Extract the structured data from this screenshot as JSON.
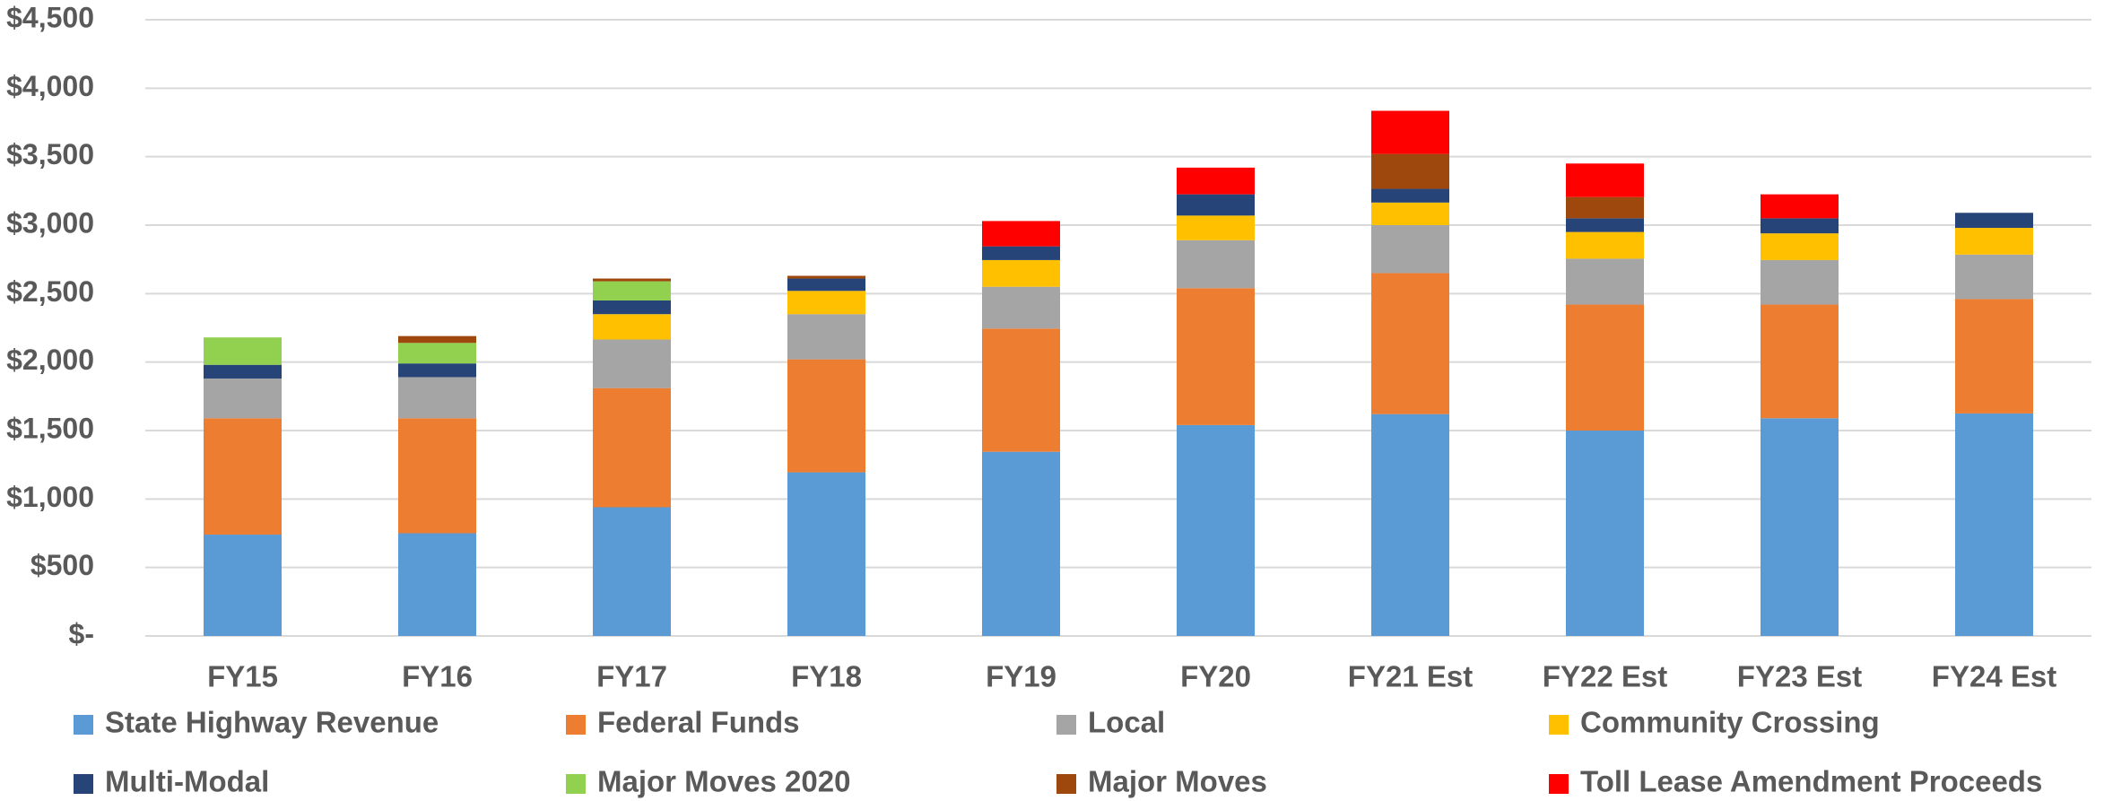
{
  "chart_data": {
    "type": "stacked_bar",
    "categories": [
      "FY15",
      "FY16",
      "FY17",
      "FY18",
      "FY19",
      "FY20",
      "FY21 Est",
      "FY22 Est",
      "FY23 Est",
      "FY24 Est"
    ],
    "series": [
      {
        "name": "State Highway Revenue",
        "color": "#5b9bd5",
        "values": [
          740,
          750,
          940,
          1195,
          1345,
          1540,
          1620,
          1500,
          1590,
          1625
        ]
      },
      {
        "name": "Federal Funds",
        "color": "#ed7d31",
        "values": [
          850,
          840,
          870,
          825,
          900,
          1000,
          1030,
          920,
          830,
          835
        ]
      },
      {
        "name": "Local",
        "color": "#a5a5a5",
        "values": [
          290,
          300,
          355,
          330,
          305,
          350,
          350,
          335,
          325,
          325
        ]
      },
      {
        "name": "Community Crossing",
        "color": "#ffc000",
        "values": [
          0,
          0,
          185,
          170,
          195,
          180,
          165,
          195,
          195,
          195
        ]
      },
      {
        "name": "Multi-Modal",
        "color": "#264478",
        "values": [
          100,
          100,
          100,
          90,
          100,
          155,
          100,
          100,
          110,
          110
        ]
      },
      {
        "name": "Major Moves 2020",
        "color": "#92d050",
        "values": [
          200,
          150,
          140,
          0,
          0,
          0,
          0,
          0,
          0,
          0
        ]
      },
      {
        "name": "Major Moves",
        "color": "#9e480e",
        "values": [
          0,
          50,
          20,
          20,
          0,
          0,
          255,
          155,
          0,
          0
        ]
      },
      {
        "name": "Toll Lease Amendment Proceeds",
        "color": "#ff0000",
        "values": [
          0,
          0,
          0,
          0,
          185,
          195,
          315,
          245,
          175,
          0
        ]
      }
    ],
    "ylim": [
      0,
      4500
    ],
    "yticks": [
      {
        "value": 0,
        "label": "$-"
      },
      {
        "value": 500,
        "label": "$500"
      },
      {
        "value": 1000,
        "label": "$1,000"
      },
      {
        "value": 1500,
        "label": "$1,500"
      },
      {
        "value": 2000,
        "label": "$2,000"
      },
      {
        "value": 2500,
        "label": "$2,500"
      },
      {
        "value": 3000,
        "label": "$3,000"
      },
      {
        "value": 3500,
        "label": "$3,500"
      },
      {
        "value": 4000,
        "label": "$4,000"
      },
      {
        "value": 4500,
        "label": "$4,500"
      }
    ],
    "grid": true
  }
}
